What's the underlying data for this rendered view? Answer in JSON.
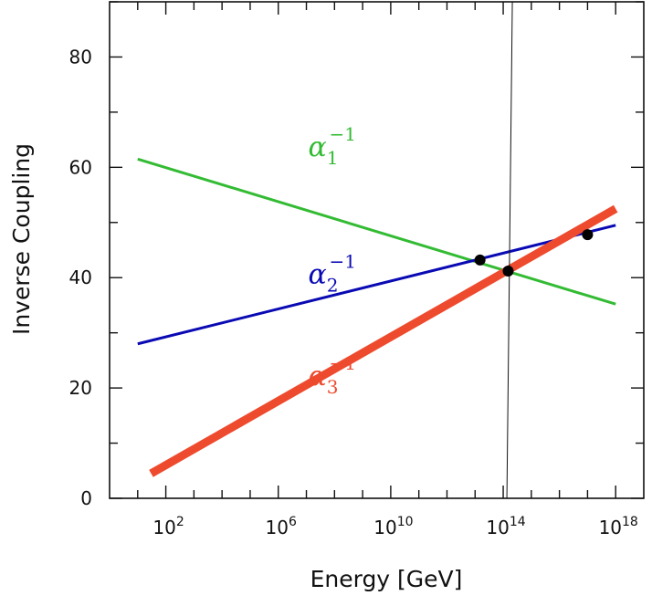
{
  "chart_data": {
    "type": "line",
    "title": "",
    "xlabel": "Energy [GeV]",
    "ylabel": "Inverse Coupling",
    "x_scale": "log",
    "xlim": [
      1,
      1e+19
    ],
    "ylim": [
      0,
      90
    ],
    "x_ticks": [
      {
        "value": 100,
        "base": "10",
        "exp": "2"
      },
      {
        "value": 1000000,
        "base": "10",
        "exp": "6"
      },
      {
        "value": 10000000000,
        "base": "10",
        "exp": "10"
      },
      {
        "value": 100000000000000,
        "base": "10",
        "exp": "14"
      },
      {
        "value": 1000000000000000000,
        "base": "10",
        "exp": "18"
      }
    ],
    "y_ticks": [
      {
        "value": 0,
        "label": "0"
      },
      {
        "value": 20,
        "label": "20"
      },
      {
        "value": 40,
        "label": "40"
      },
      {
        "value": 60,
        "label": "60"
      },
      {
        "value": 80,
        "label": "80"
      }
    ],
    "grid": false,
    "series": [
      {
        "name_base": "α",
        "name_sub": "1",
        "name_sup": "−1",
        "color": "#33bb33",
        "width": 3,
        "x": [
          10,
          1e+18
        ],
        "y": [
          61.5,
          35.2
        ],
        "label_at": {
          "x": 10000000.0,
          "y": 62
        }
      },
      {
        "name_base": "α",
        "name_sub": "2",
        "name_sup": "−1",
        "color": "#0a0ab4",
        "width": 3,
        "x": [
          10,
          1e+18
        ],
        "y": [
          28.0,
          49.5
        ],
        "label_at": {
          "x": 10000000.0,
          "y": 39
        }
      },
      {
        "name_base": "α",
        "name_sub": "3",
        "name_sup": "−1",
        "color": "#ee4a2e",
        "width": 9,
        "x": [
          30,
          1e+18
        ],
        "y": [
          4.5,
          52.5
        ],
        "label_at": {
          "x": 10000000.0,
          "y": 20.5
        }
      }
    ],
    "intersection_points": [
      {
        "x": 15000000000000.0,
        "y": 43.2
      },
      {
        "x": 150000000000000.0,
        "y": 41.2
      },
      {
        "x": 1e+17,
        "y": 47.8
      }
    ],
    "vertical_line": {
      "x": 135000000000000.0,
      "y_bottom": 0,
      "y_top": 90,
      "color": "#111111"
    }
  }
}
